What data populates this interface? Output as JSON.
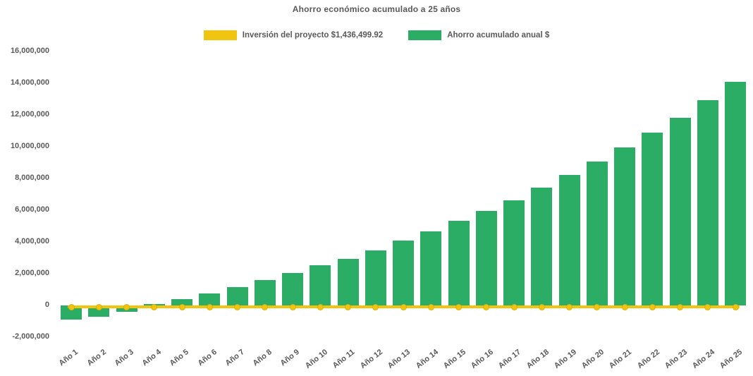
{
  "chart_data": {
    "type": "bar",
    "title": "Ahorro económico acumulado a 25 años",
    "categories": [
      "Año 1",
      "Año 2",
      "Año 3",
      "Año 4",
      "Año 5",
      "Año 6",
      "Año 7",
      "Año 8",
      "Año 9",
      "Año 10",
      "Año 11",
      "Año 12",
      "Año 13",
      "Año 14",
      "Año 15",
      "Año 16",
      "Año 17",
      "Año 18",
      "Año 19",
      "Año 20",
      "Año 21",
      "Año 22",
      "Año 23",
      "Año 24",
      "Año 25"
    ],
    "series": [
      {
        "name": "Ahorro acumulado anual $",
        "type": "bar",
        "color": "#2BAD66",
        "values": [
          -870000,
          -710000,
          -410000,
          80000,
          400000,
          760000,
          1140000,
          1590000,
          2030000,
          2550000,
          2920000,
          3470000,
          4090000,
          4650000,
          5320000,
          5960000,
          6620000,
          7410000,
          8210000,
          9050000,
          9940000,
          10890000,
          11840000,
          12950000,
          14090000
        ]
      },
      {
        "name": "Inversión del proyecto $1,436,499.92",
        "type": "line",
        "color": "#F1C40F",
        "constant_value": -110000,
        "markers": "circle",
        "note": "flat horizontal line with a circular marker at every year, drawn just below the zero baseline"
      }
    ],
    "legend": [
      {
        "label": "Inversión del proyecto $1,436,499.92",
        "color": "#F1C40F"
      },
      {
        "label": "Ahorro acumulado anual $",
        "color": "#2BAD66"
      }
    ],
    "legend_position": "top",
    "grid": false,
    "xlabel": "",
    "ylabel": "",
    "ylim": [
      -2000000,
      16000000
    ],
    "y_tick_step": 2000000,
    "y_tick_values": [
      16000000,
      14000000,
      12000000,
      10000000,
      8000000,
      6000000,
      4000000,
      2000000,
      0,
      -2000000
    ],
    "y_tick_labels": [
      "16,000,000",
      "14,000,000",
      "12,000,000",
      "10,000,000",
      "8,000,000",
      "6,000,000",
      "4,000,000",
      "2,000,000",
      "0",
      "-2,000,000"
    ]
  },
  "colors": {
    "background": "#FFFFFF",
    "bar_green": "#2BAD66",
    "line_yellow": "#F1C40F",
    "text_gray": "#595959"
  }
}
